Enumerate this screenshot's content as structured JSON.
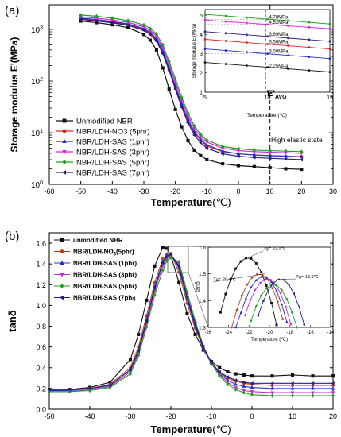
{
  "chart_data": [
    {
      "panel": "(a)",
      "type": "line",
      "xlabel": "Temperature",
      "xunit": "(℃)",
      "ylabel": "Storage modulus E'(MPa)",
      "xlim": [
        -60,
        30
      ],
      "ylim": [
        1,
        3000
      ],
      "yscale": "log",
      "xticks": [
        "-60",
        "-50",
        "-40",
        "-30",
        "-20",
        "-10",
        "0",
        "10",
        "20",
        "30"
      ],
      "yticks": [
        "10^0",
        "10^1",
        "10^2",
        "10^3"
      ],
      "legend_position": "lower-left",
      "annotation": "High elastic state",
      "x": [
        -50,
        -45,
        -40,
        -35,
        -30,
        -28,
        -26,
        -24,
        -22,
        -20,
        -18,
        -16,
        -14,
        -12,
        -10,
        -5,
        0,
        5,
        10,
        15,
        20
      ],
      "series": [
        {
          "name": "Unmodified NBR",
          "color": "#111111",
          "marker": "square",
          "values": [
            1450,
            1350,
            1230,
            1080,
            800,
            620,
            400,
            180,
            70,
            28,
            13,
            7,
            4.6,
            3.6,
            3.0,
            2.5,
            2.3,
            2.2,
            2.1,
            2.0,
            1.95
          ]
        },
        {
          "name": "NBR/LDH-NO3 (5phr)",
          "color": "#e02020",
          "marker": "circle",
          "values": [
            1600,
            1500,
            1380,
            1250,
            1000,
            840,
            620,
            360,
            170,
            75,
            34,
            17,
            10,
            7.2,
            5.5,
            4.3,
            3.9,
            3.7,
            3.6,
            3.5,
            3.45
          ]
        },
        {
          "name": "NBR/LDH-SAS (1phr)",
          "color": "#2030d0",
          "marker": "triangle",
          "values": [
            1650,
            1550,
            1420,
            1280,
            1040,
            880,
            660,
            390,
            180,
            80,
            36,
            18,
            10.5,
            7.4,
            5.8,
            4.4,
            3.9,
            3.7,
            3.6,
            3.5,
            3.4
          ]
        },
        {
          "name": "NBR/LDH-SAS (3phr)",
          "color": "#e020e0",
          "marker": "triangle-down",
          "values": [
            1750,
            1650,
            1520,
            1370,
            1120,
            960,
            740,
            440,
            210,
            95,
            42,
            21,
            12,
            8.4,
            6.6,
            5.0,
            4.5,
            4.3,
            4.2,
            4.1,
            4.0
          ]
        },
        {
          "name": "NBR/LDH-SAS (5phr)",
          "color": "#20a020",
          "marker": "diamond",
          "values": [
            1900,
            1800,
            1650,
            1480,
            1220,
            1040,
            820,
            500,
            240,
            110,
            48,
            24,
            13.5,
            9.3,
            7.2,
            5.4,
            4.9,
            4.6,
            4.5,
            4.4,
            4.3
          ]
        },
        {
          "name": "NBR/LDH-SAS (7phr)",
          "color": "#202080",
          "marker": "triangle-left",
          "values": [
            1560,
            1460,
            1340,
            1200,
            960,
            800,
            590,
            340,
            160,
            70,
            31,
            15.5,
            9,
            6.4,
            5.0,
            3.9,
            3.5,
            3.3,
            3.2,
            3.1,
            3.0
          ]
        }
      ],
      "inset": {
        "xlim": [
          5,
          15
        ],
        "ylim": [
          1,
          5.3
        ],
        "xticks": [
          "5",
          "10",
          "15"
        ],
        "yticks": [
          "1",
          "2",
          "3",
          "4",
          "5"
        ],
        "xlabel": "Temperature (℃)",
        "ylabel": "Storage modulus E'(MPa)",
        "marker_label": "E'",
        "marker_sub": "AVG",
        "labels": [
          "4.78MPa",
          "4.52MPa",
          "3.89MPa",
          "3.50MPa",
          "3.00MPa",
          "2.25MPa"
        ],
        "label_values": [
          4.78,
          4.52,
          3.89,
          3.5,
          3.0,
          2.25
        ],
        "x": [
          5,
          15
        ],
        "series_values": [
          [
            2.55,
            2.05
          ],
          [
            3.25,
            2.75
          ],
          [
            3.75,
            3.25
          ],
          [
            4.15,
            3.65
          ],
          [
            4.75,
            4.3
          ],
          [
            5.05,
            4.55
          ]
        ],
        "series_colors": [
          "#111111",
          "#2030d0",
          "#e02020",
          "#202080",
          "#e020e0",
          "#20a020"
        ]
      }
    },
    {
      "panel": "(b)",
      "type": "line",
      "xlabel": "Temperature",
      "xunit": "(℃)",
      "ylabel": "tanδ",
      "xlim": [
        -50,
        20
      ],
      "ylim": [
        0.0,
        1.7
      ],
      "xticks": [
        "-50",
        "-40",
        "-30",
        "-20",
        "-10",
        "0",
        "10",
        "20"
      ],
      "yticks": [
        "0.0",
        "0.2",
        "0.4",
        "0.6",
        "0.8",
        "1.0",
        "1.2",
        "1.4",
        "1.6"
      ],
      "legend_position": "upper-left",
      "x": [
        -50,
        -45,
        -40,
        -35,
        -30,
        -28,
        -26,
        -24,
        -22,
        -21,
        -20,
        -18,
        -16,
        -14,
        -12,
        -10,
        -8,
        -6,
        -4,
        -2,
        0,
        5,
        10,
        15,
        20
      ],
      "series": [
        {
          "name": "unmodified NBR",
          "color": "#111111",
          "marker": "square",
          "values": [
            0.19,
            0.19,
            0.21,
            0.26,
            0.48,
            0.72,
            1.05,
            1.38,
            1.56,
            1.55,
            1.48,
            1.22,
            0.92,
            0.72,
            0.57,
            0.46,
            0.4,
            0.36,
            0.34,
            0.33,
            0.32,
            0.32,
            0.33,
            0.32,
            0.32
          ]
        },
        {
          "name": "NBR/LDH-NO3(5phr)",
          "name_label": "NBR/LDH-NO",
          "name_sub": "3",
          "name_tail": "(5phr)",
          "color": "#c04020",
          "marker": "circle",
          "values": [
            0.18,
            0.18,
            0.2,
            0.24,
            0.4,
            0.6,
            0.9,
            1.22,
            1.45,
            1.49,
            1.5,
            1.32,
            1.02,
            0.78,
            0.58,
            0.44,
            0.35,
            0.3,
            0.27,
            0.25,
            0.24,
            0.23,
            0.23,
            0.23,
            0.23
          ]
        },
        {
          "name": "NBR/LDH-SAS (1phr)",
          "color": "#2030d0",
          "marker": "triangle",
          "values": [
            0.18,
            0.18,
            0.2,
            0.23,
            0.38,
            0.57,
            0.86,
            1.18,
            1.42,
            1.48,
            1.49,
            1.36,
            1.06,
            0.8,
            0.59,
            0.44,
            0.34,
            0.28,
            0.24,
            0.22,
            0.21,
            0.2,
            0.2,
            0.2,
            0.2
          ]
        },
        {
          "name": "NBR/LDH-SAS (3phr)",
          "color": "#c030d0",
          "marker": "triangle-down",
          "values": [
            0.17,
            0.17,
            0.19,
            0.22,
            0.36,
            0.54,
            0.82,
            1.14,
            1.38,
            1.46,
            1.48,
            1.4,
            1.1,
            0.83,
            0.6,
            0.44,
            0.33,
            0.26,
            0.21,
            0.18,
            0.17,
            0.16,
            0.16,
            0.16,
            0.16
          ]
        },
        {
          "name": "NBR/LDH-SAS (5phr)",
          "color": "#20a020",
          "marker": "diamond",
          "values": [
            0.17,
            0.17,
            0.18,
            0.21,
            0.34,
            0.52,
            0.79,
            1.1,
            1.34,
            1.43,
            1.46,
            1.42,
            1.13,
            0.85,
            0.61,
            0.44,
            0.32,
            0.24,
            0.19,
            0.16,
            0.14,
            0.13,
            0.13,
            0.13,
            0.13
          ]
        },
        {
          "name": "NBR/LDH-SAS (7phr)",
          "name_label": "NBR/LDH-SAS (7ph",
          "name_tail": "r)",
          "color": "#202080",
          "marker": "triangle-left",
          "values": [
            0.19,
            0.19,
            0.2,
            0.23,
            0.38,
            0.56,
            0.85,
            1.17,
            1.41,
            1.47,
            1.49,
            1.38,
            1.08,
            0.82,
            0.6,
            0.45,
            0.36,
            0.31,
            0.28,
            0.26,
            0.25,
            0.25,
            0.25,
            0.25,
            0.25
          ]
        }
      ],
      "inset": {
        "xlim": [
          -26,
          -14
        ],
        "ylim": [
          1.3,
          1.6
        ],
        "xticks": [
          "-26",
          "-24",
          "-22",
          "-20",
          "-18",
          "-16",
          "-14"
        ],
        "yticks": [
          "1.3",
          "1.4",
          "1.5",
          "1.6"
        ],
        "xlabel": "Temperature (℃)",
        "ylabel": "tanδ",
        "annotations": [
          "Tg=-22.1℃",
          "Tg=-20.4℃",
          "Tg=-18.9℃"
        ],
        "annotation_points": [
          [
            -22.1,
            1.56
          ],
          [
            -20.4,
            1.5
          ],
          [
            -18.9,
            1.48
          ]
        ]
      }
    }
  ]
}
